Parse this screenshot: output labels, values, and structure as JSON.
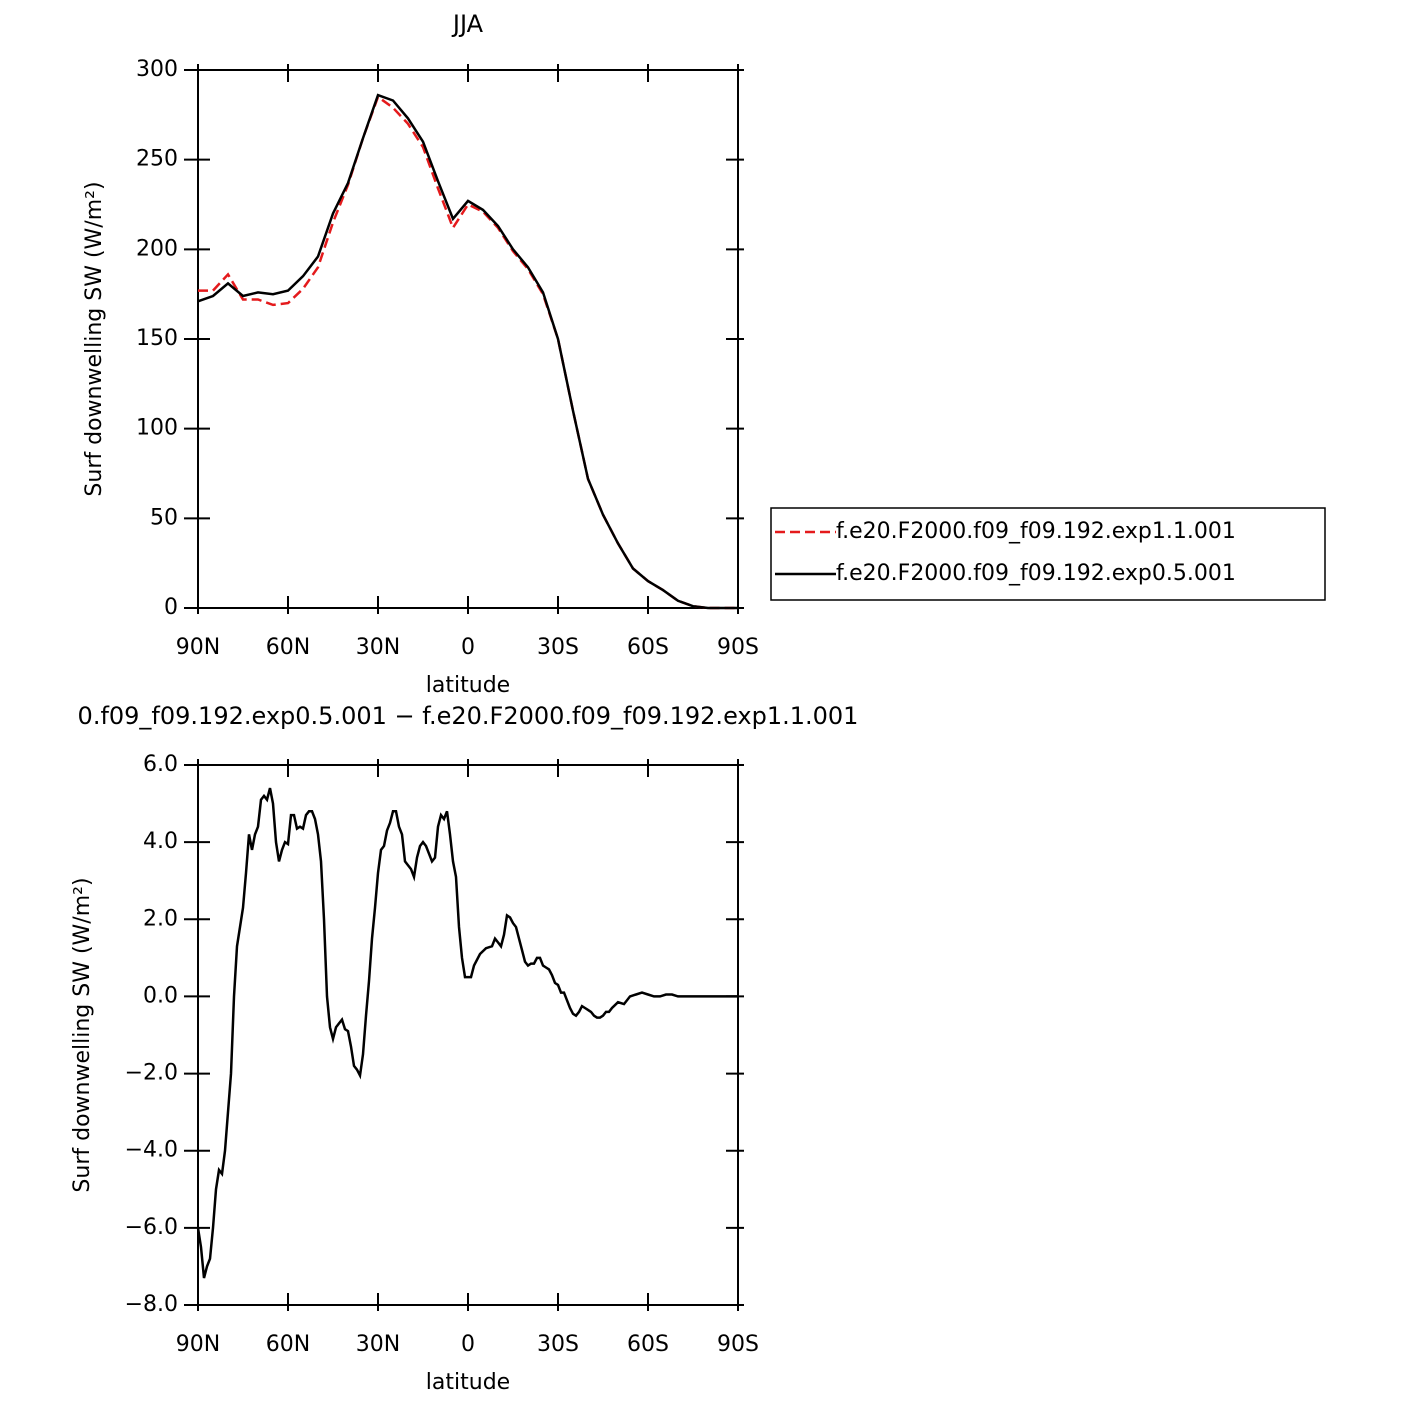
{
  "chart_data": [
    {
      "type": "line",
      "title": "JJA",
      "x_label": "latitude",
      "y_label": "Surf  downwelling SW (W/m²)",
      "x": [
        90,
        85,
        80,
        75,
        70,
        65,
        60,
        55,
        50,
        45,
        40,
        35,
        30,
        25,
        20,
        15,
        10,
        5,
        0,
        -5,
        -10,
        -15,
        -20,
        -25,
        -30,
        -35,
        -40,
        -45,
        -50,
        -55,
        -60,
        -65,
        -70,
        -75,
        -80,
        -85,
        -90
      ],
      "series": [
        {
          "name": "f.e20.F2000.f09_f09.192.exp1.1.001",
          "color": "#e41a1c",
          "line_style": "dashed",
          "values": [
            177,
            177,
            186,
            172,
            172,
            169,
            170,
            178,
            190,
            215,
            236,
            262,
            285,
            279,
            270,
            257,
            234,
            212,
            225,
            221,
            212,
            199,
            189,
            175,
            150,
            110,
            72,
            52,
            36,
            22,
            15,
            10,
            4,
            1,
            0,
            0,
            0
          ]
        },
        {
          "name": "f.e20.F2000.f09_f09.192.exp0.5.001",
          "color": "#000000",
          "line_style": "solid",
          "values": [
            171,
            174,
            181,
            174,
            176,
            175,
            177,
            185,
            196,
            220,
            237,
            262,
            286,
            283,
            273,
            260,
            238,
            217,
            227,
            222,
            213,
            200,
            190,
            176,
            150,
            110,
            72,
            52,
            36,
            22,
            15,
            10,
            4,
            1,
            0,
            0,
            0
          ]
        }
      ],
      "xlim": [
        90,
        -90
      ],
      "xticks": [
        {
          "value": 90,
          "label": "90N"
        },
        {
          "value": 60,
          "label": "60N"
        },
        {
          "value": 30,
          "label": "30N"
        },
        0,
        {
          "value": -30,
          "label": "30S"
        },
        {
          "value": -60,
          "label": "60S"
        },
        {
          "value": -90,
          "label": "90S"
        }
      ],
      "ylim": [
        0,
        300
      ],
      "yticks": [
        0,
        50,
        100,
        150,
        200,
        250,
        300
      ],
      "legend": "right"
    },
    {
      "type": "line",
      "title": "0.f09_f09.192.exp0.5.001 − f.e20.F2000.f09_f09.192.exp1.1.001",
      "x_label": "latitude",
      "y_label": "Surf  downwelling SW (W/m²)",
      "x": [
        90,
        89,
        88,
        87,
        86,
        85,
        84,
        83,
        82,
        81,
        80,
        79,
        78,
        77,
        76,
        75,
        74,
        73,
        72,
        71,
        70,
        69,
        68,
        67,
        66,
        65,
        64,
        63,
        62,
        61,
        60,
        59,
        58,
        57,
        56,
        55,
        54,
        53,
        52,
        51,
        50,
        49,
        48,
        47,
        46,
        45,
        44,
        43,
        42,
        41,
        40,
        39,
        38,
        37,
        36,
        35,
        34,
        33,
        32,
        31,
        30,
        29,
        28,
        27,
        26,
        25,
        24,
        23,
        22,
        21,
        20,
        19,
        18,
        17,
        16,
        15,
        14,
        13,
        12,
        11,
        10,
        9,
        8,
        7,
        6,
        5,
        4,
        3,
        2,
        1,
        0,
        -1,
        -2,
        -4,
        -6,
        -8,
        -9,
        -10,
        -11,
        -12,
        -13,
        -14,
        -15,
        -16,
        -17,
        -18,
        -19,
        -20,
        -21,
        -22,
        -23,
        -24,
        -25,
        -26,
        -27,
        -28,
        -29,
        -30,
        -31,
        -32,
        -33,
        -34,
        -35,
        -36,
        -37,
        -38,
        -39,
        -40,
        -41,
        -42,
        -43,
        -44,
        -45,
        -46,
        -47,
        -48,
        -50,
        -52,
        -54,
        -56,
        -58,
        -60,
        -62,
        -64,
        -66,
        -68,
        -70,
        -75,
        -80,
        -90
      ],
      "series": [
        {
          "color": "#000000",
          "line_style": "solid",
          "values": [
            -6.0,
            -6.5,
            -7.3,
            -7.0,
            -6.8,
            -6.0,
            -5.0,
            -4.5,
            -4.6,
            -4.0,
            -3.0,
            -2.0,
            0.0,
            1.3,
            1.8,
            2.3,
            3.2,
            4.2,
            3.8,
            4.2,
            4.4,
            5.1,
            5.2,
            5.1,
            5.4,
            5.0,
            4.0,
            3.5,
            3.8,
            4.0,
            3.95,
            4.7,
            4.7,
            4.35,
            4.4,
            4.35,
            4.7,
            4.8,
            4.8,
            4.6,
            4.2,
            3.5,
            2.0,
            0.0,
            -0.8,
            -1.1,
            -0.8,
            -0.7,
            -0.6,
            -0.85,
            -0.9,
            -1.3,
            -1.8,
            -1.9,
            -2.05,
            -1.5,
            -0.5,
            0.4,
            1.5,
            2.3,
            3.2,
            3.8,
            3.9,
            4.3,
            4.5,
            4.8,
            4.8,
            4.4,
            4.2,
            3.5,
            3.4,
            3.3,
            3.1,
            3.6,
            3.9,
            4.0,
            3.9,
            3.7,
            3.5,
            3.6,
            4.4,
            4.7,
            4.6,
            4.8,
            4.2,
            3.5,
            3.1,
            1.8,
            1.0,
            0.5,
            0.5,
            0.5,
            0.8,
            1.1,
            1.25,
            1.3,
            1.5,
            1.4,
            1.3,
            1.6,
            2.1,
            2.05,
            1.9,
            1.8,
            1.5,
            1.2,
            0.9,
            0.8,
            0.85,
            0.85,
            1.0,
            1.0,
            0.8,
            0.75,
            0.7,
            0.55,
            0.35,
            0.3,
            0.1,
            0.1,
            -0.1,
            -0.3,
            -0.45,
            -0.5,
            -0.4,
            -0.25,
            -0.3,
            -0.35,
            -0.4,
            -0.5,
            -0.55,
            -0.55,
            -0.5,
            -0.4,
            -0.4,
            -0.3,
            -0.15,
            -0.2,
            0.0,
            0.05,
            0.1,
            0.05,
            0.0,
            0.0,
            0.05,
            0.05,
            0.0,
            0.0,
            0.0,
            0.0
          ]
        }
      ],
      "xlim": [
        90,
        -90
      ],
      "xticks": [
        {
          "value": 90,
          "label": "90N"
        },
        {
          "value": 60,
          "label": "60N"
        },
        {
          "value": 30,
          "label": "30N"
        },
        0,
        {
          "value": -30,
          "label": "30S"
        },
        {
          "value": -60,
          "label": "60S"
        },
        {
          "value": -90,
          "label": "90S"
        }
      ],
      "ylim": [
        -8,
        6
      ],
      "yticks": [
        {
          "value": -8,
          "label": "−8.0"
        },
        {
          "value": -6,
          "label": "−6.0"
        },
        {
          "value": -4,
          "label": "−4.0"
        },
        {
          "value": -2,
          "label": "−2.0"
        },
        {
          "value": 0,
          "label": "0.0"
        },
        {
          "value": 2,
          "label": "2.0"
        },
        {
          "value": 4,
          "label": "4.0"
        },
        {
          "value": 6,
          "label": "6.0"
        }
      ]
    }
  ]
}
